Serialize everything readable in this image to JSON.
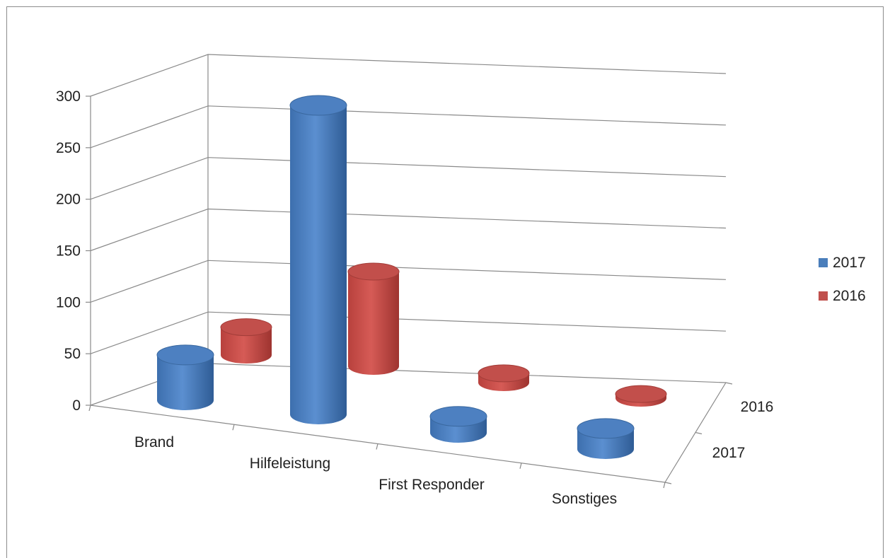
{
  "chart_data": {
    "type": "bar",
    "style": "3d-cylinder",
    "categories": [
      "Brand",
      "Hilfeleistung",
      "First Responder",
      "Sonstiges"
    ],
    "depth_categories": [
      "2017",
      "2016"
    ],
    "series": [
      {
        "name": "2017",
        "color": "#4a7ebb",
        "values": [
          44,
          300,
          16,
          20
        ]
      },
      {
        "name": "2016",
        "color": "#c0504d",
        "values": [
          27,
          92,
          9,
          4
        ]
      }
    ],
    "y_ticks": [
      "0",
      "50",
      "100",
      "150",
      "200",
      "250",
      "300"
    ],
    "ylim": [
      0,
      300
    ],
    "grid": true,
    "legend_position": "right",
    "title": "",
    "xlabel": "",
    "ylabel": ""
  }
}
